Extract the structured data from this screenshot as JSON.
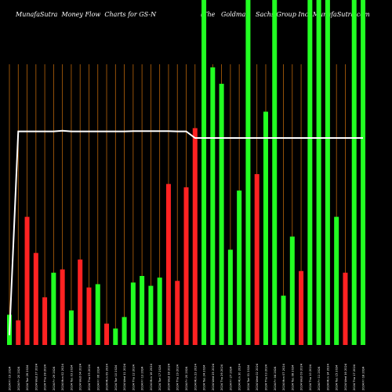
{
  "title_left": "MunafaSutra  Money Flow  Charts for GS-N",
  "title_right": "(The   Goldman   Sachs Group Inc) MunafaSutra.com",
  "colors": {
    "background": "#000000",
    "up": "#22ff22",
    "down": "#ff2222",
    "grid": "#b8640a",
    "line": "#ffffff"
  },
  "chart_data": {
    "type": "bar",
    "bars": [
      {
        "value": 0.92,
        "color": "green",
        "label": "2024 Fri 19 2024"
      },
      {
        "value": 0.75,
        "color": "red",
        "label": "2024 Fri 20 2024"
      },
      {
        "value": 3.9,
        "color": "red",
        "label": "2024 Tue 26 2024"
      },
      {
        "value": 2.8,
        "color": "red",
        "label": "2024 Wed 27 2024"
      },
      {
        "value": 1.45,
        "color": "red",
        "label": "2024 Thu 28 2024"
      },
      {
        "value": 2.2,
        "color": "green",
        "label": "2024 Fri 29 2024"
      },
      {
        "value": 2.3,
        "color": "red",
        "label": "2024 Mon 02 2024"
      },
      {
        "value": 1.05,
        "color": "green",
        "label": "2024 Tue 03 2024"
      },
      {
        "value": 2.6,
        "color": "red",
        "label": "2024 Wed 04 2024"
      },
      {
        "value": 1.75,
        "color": "red",
        "label": "2024 Thu 05 2024"
      },
      {
        "value": 1.85,
        "color": "green",
        "label": "2024 Fri 06 2024"
      },
      {
        "value": 0.65,
        "color": "red",
        "label": "2024 Mon 09 2024"
      },
      {
        "value": 0.5,
        "color": "green",
        "label": "2024 Tue 10 2024"
      },
      {
        "value": 0.85,
        "color": "green",
        "label": "2024 Wed 11 2024"
      },
      {
        "value": 1.9,
        "color": "green",
        "label": "2024 Thu 12 2024"
      },
      {
        "value": 2.1,
        "color": "green",
        "label": "2024 Fri 13 2024"
      },
      {
        "value": 1.8,
        "color": "green",
        "label": "2024 Mon 16 2024"
      },
      {
        "value": 2.05,
        "color": "green",
        "label": "2024 Tue 17 2024"
      },
      {
        "value": 4.9,
        "color": "red",
        "label": "2024 Wed 18 2024"
      },
      {
        "value": 1.95,
        "color": "red",
        "label": "2024 Thu 19 2024"
      },
      {
        "value": 4.8,
        "color": "red",
        "label": "2024 Fri 20 2024"
      },
      {
        "value": 6.6,
        "color": "red",
        "label": "2024 Mon 23 2024"
      },
      {
        "value": 10.5,
        "color": "green",
        "label": "2024 Tue 24 2024"
      },
      {
        "value": 8.45,
        "color": "green",
        "label": "2024 Wed 25 2024"
      },
      {
        "value": 7.95,
        "color": "green",
        "label": "2024 Thu 26 2024"
      },
      {
        "value": 2.9,
        "color": "green",
        "label": "2024 Fri 27 2024"
      },
      {
        "value": 4.7,
        "color": "green",
        "label": "2024 Mon 30 2024"
      },
      {
        "value": 10.5,
        "color": "green",
        "label": "2024 Tue 01 2024"
      },
      {
        "value": 5.2,
        "color": "red",
        "label": "2024 Wed 02 2024"
      },
      {
        "value": 7.1,
        "color": "green",
        "label": "2024 Thu 03 2024"
      },
      {
        "value": 10.5,
        "color": "green",
        "label": "2024 Fri 04 2024"
      },
      {
        "value": 1.5,
        "color": "green",
        "label": "2024 Mon 07 2024"
      },
      {
        "value": 3.3,
        "color": "green",
        "label": "2024 Tue 08 2024"
      },
      {
        "value": 2.25,
        "color": "red",
        "label": "2024 Wed 09 2024"
      },
      {
        "value": 10.5,
        "color": "green",
        "label": "2024 Thu 10 2024"
      },
      {
        "value": 10.5,
        "color": "green",
        "label": "2024 Fri 11 2024"
      },
      {
        "value": 10.5,
        "color": "green",
        "label": "2024 Mon 14 2024"
      },
      {
        "value": 3.9,
        "color": "green",
        "label": "2024 Tue 15 2024"
      },
      {
        "value": 2.2,
        "color": "red",
        "label": "2024 Wed 16 2024"
      },
      {
        "value": 10.5,
        "color": "green",
        "label": "2024 Thu 17 2024"
      },
      {
        "value": 10.5,
        "color": "green",
        "label": "2024 Fri 18 2024"
      }
    ],
    "line": [
      0.3,
      6.5,
      6.5,
      6.5,
      6.5,
      6.5,
      6.52,
      6.5,
      6.5,
      6.5,
      6.5,
      6.5,
      6.5,
      6.5,
      6.51,
      6.51,
      6.51,
      6.51,
      6.51,
      6.5,
      6.5,
      6.3,
      6.3,
      6.3,
      6.3,
      6.3,
      6.3,
      6.3,
      6.3,
      6.3,
      6.3,
      6.3,
      6.3,
      6.3,
      6.3,
      6.3,
      6.3,
      6.3,
      6.3,
      6.3,
      6.3
    ],
    "ylim": [
      0,
      10.5
    ],
    "grid": true
  }
}
